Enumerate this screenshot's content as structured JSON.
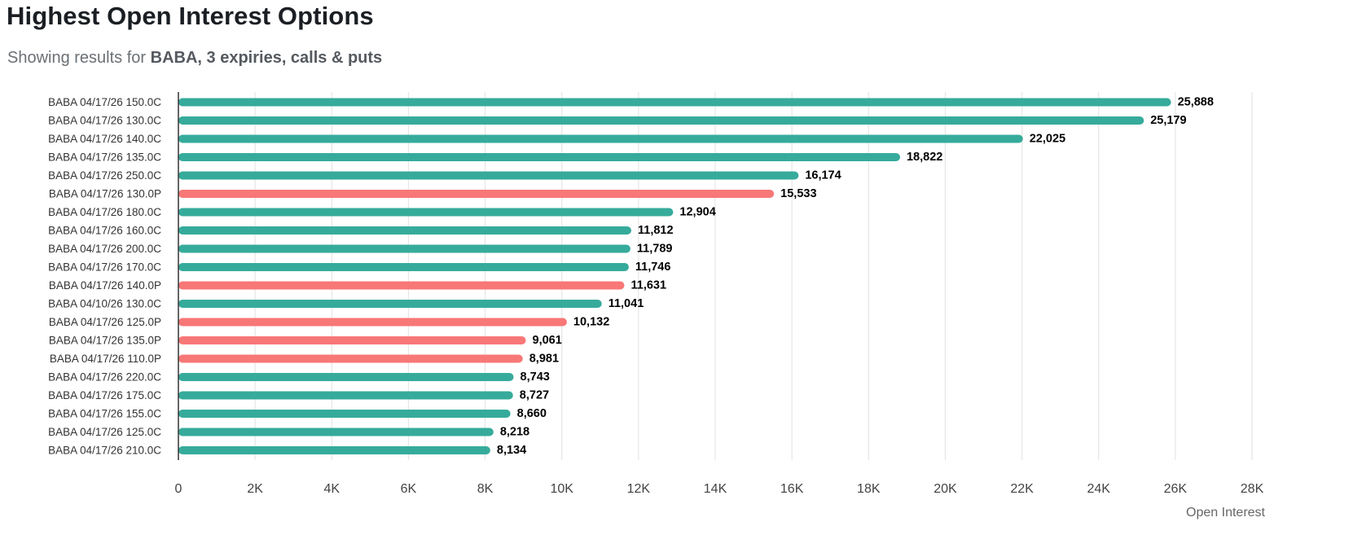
{
  "header": {
    "title": "Highest Open Interest Options",
    "subtitle_prefix": "Showing results for ",
    "subtitle_emphasis": "BABA, 3 expiries, calls & puts"
  },
  "colors": {
    "call": "#36ab9b",
    "put": "#f87777",
    "grid": "#e6e6e6",
    "axis": "#333333"
  },
  "chart_data": {
    "type": "bar",
    "orientation": "horizontal",
    "title": "Highest Open Interest Options",
    "xlabel": "Open Interest",
    "ylabel": "",
    "xlim": [
      0,
      28000
    ],
    "x_ticks": [
      0,
      2000,
      4000,
      6000,
      8000,
      10000,
      12000,
      14000,
      16000,
      18000,
      20000,
      22000,
      24000,
      26000,
      28000
    ],
    "x_tick_labels": [
      "0",
      "2K",
      "4K",
      "6K",
      "8K",
      "10K",
      "12K",
      "14K",
      "16K",
      "18K",
      "20K",
      "22K",
      "24K",
      "26K",
      "28K"
    ],
    "grid": true,
    "categories": [
      "BABA 04/17/26 150.0C",
      "BABA 04/17/26 130.0C",
      "BABA 04/17/26 140.0C",
      "BABA 04/17/26 135.0C",
      "BABA 04/17/26 250.0C",
      "BABA 04/17/26 130.0P",
      "BABA 04/17/26 180.0C",
      "BABA 04/17/26 160.0C",
      "BABA 04/17/26 200.0C",
      "BABA 04/17/26 170.0C",
      "BABA 04/17/26 140.0P",
      "BABA 04/10/26 130.0C",
      "BABA 04/17/26 125.0P",
      "BABA 04/17/26 135.0P",
      "BABA 04/17/26 110.0P",
      "BABA 04/17/26 220.0C",
      "BABA 04/17/26 175.0C",
      "BABA 04/17/26 155.0C",
      "BABA 04/17/26 125.0C",
      "BABA 04/17/26 210.0C"
    ],
    "values": [
      25888,
      25179,
      22025,
      18822,
      16174,
      15533,
      12904,
      11812,
      11789,
      11746,
      11631,
      11041,
      10132,
      9061,
      8981,
      8743,
      8727,
      8660,
      8218,
      8134
    ],
    "value_labels": [
      "25,888",
      "25,179",
      "22,025",
      "18,822",
      "16,174",
      "15,533",
      "12,904",
      "11,812",
      "11,789",
      "11,746",
      "11,631",
      "11,041",
      "10,132",
      "9,061",
      "8,981",
      "8,743",
      "8,727",
      "8,660",
      "8,218",
      "8,134"
    ],
    "option_types": [
      "call",
      "call",
      "call",
      "call",
      "call",
      "put",
      "call",
      "call",
      "call",
      "call",
      "put",
      "call",
      "put",
      "put",
      "put",
      "call",
      "call",
      "call",
      "call",
      "call"
    ]
  }
}
